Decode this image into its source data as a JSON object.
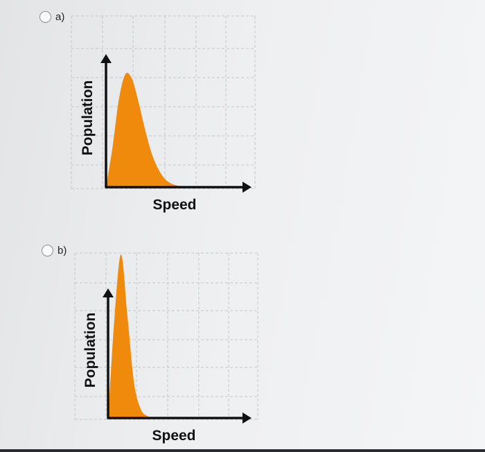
{
  "options": [
    {
      "id": "a",
      "label": "a)",
      "chart_data": {
        "type": "area",
        "title": "",
        "xlabel": "Speed",
        "ylabel": "Population",
        "fill_color": "#f08a0c",
        "grid": true,
        "x": [
          0,
          0.2,
          0.4,
          0.6,
          0.8,
          1.0,
          1.2,
          1.4,
          1.6,
          1.8,
          2.0,
          2.2,
          2.4,
          2.6,
          2.8,
          3.0
        ],
        "y": [
          0,
          0.35,
          0.78,
          1.0,
          0.96,
          0.76,
          0.52,
          0.31,
          0.17,
          0.08,
          0.035,
          0.014,
          0.005,
          0.002,
          0.001,
          0
        ]
      }
    },
    {
      "id": "b",
      "label": "b)",
      "chart_data": {
        "type": "area",
        "title": "",
        "xlabel": "Speed",
        "ylabel": "Population",
        "fill_color": "#f08a0c",
        "grid": true,
        "x": [
          0,
          0.2,
          0.4,
          0.6,
          0.8,
          1.0,
          1.2,
          1.4,
          1.6,
          1.8,
          2.0,
          2.2,
          2.4,
          2.6,
          2.8,
          3.0
        ],
        "y": [
          0,
          0.62,
          1.0,
          0.62,
          0.22,
          0.06,
          0.013,
          0.002,
          0,
          0,
          0,
          0,
          0,
          0,
          0,
          0
        ]
      }
    }
  ]
}
